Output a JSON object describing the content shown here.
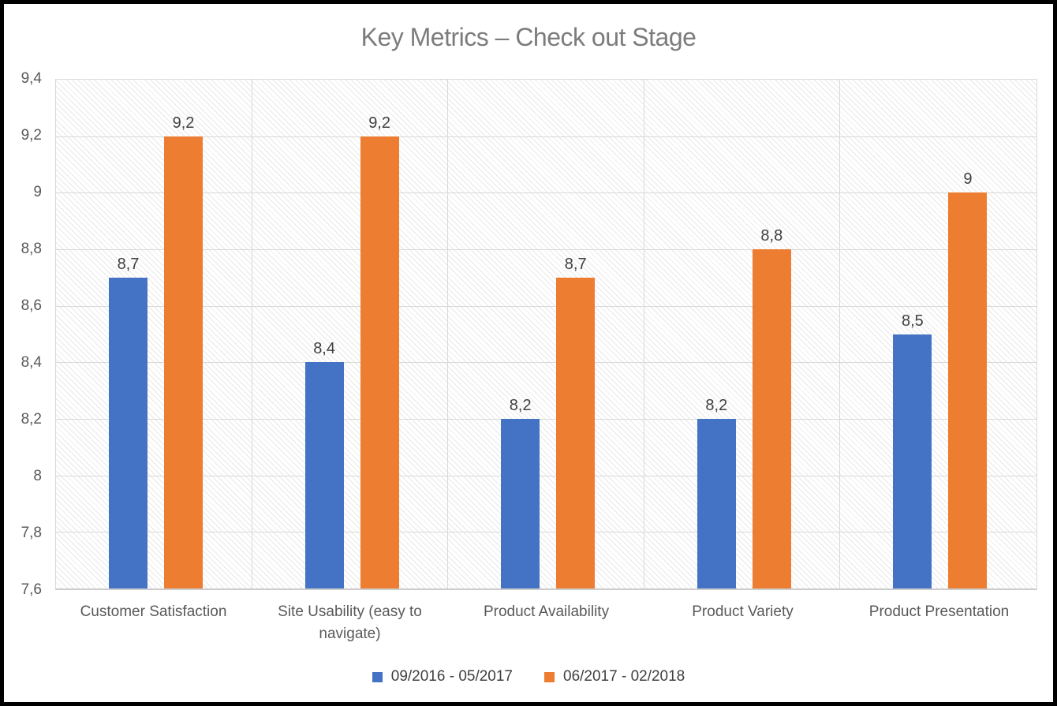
{
  "chart_data": {
    "type": "bar",
    "title": "Key Metrics – Check out Stage",
    "categories": [
      "Customer Satisfaction",
      "Site Usability (easy to navigate)",
      "Product Availability",
      "Product Variety",
      "Product Presentation"
    ],
    "series": [
      {
        "name": "09/2016 - 05/2017",
        "color": "#4472C4",
        "values": [
          8.7,
          8.4,
          8.2,
          8.2,
          8.5
        ],
        "value_labels": [
          "8,7",
          "8,4",
          "8,2",
          "8,2",
          "8,5"
        ]
      },
      {
        "name": "06/2017 - 02/2018",
        "color": "#ED7D31",
        "values": [
          9.2,
          9.2,
          8.7,
          8.8,
          9
        ],
        "value_labels": [
          "9,2",
          "9,2",
          "8,7",
          "8,8",
          "9"
        ]
      }
    ],
    "xlabel": "",
    "ylabel": "",
    "ylim": [
      7.6,
      9.4
    ],
    "y_tick_step": 0.2,
    "y_ticks": [
      {
        "value": 9.4,
        "label": "9,4"
      },
      {
        "value": 9.2,
        "label": "9,2"
      },
      {
        "value": 9.0,
        "label": "9"
      },
      {
        "value": 8.8,
        "label": "8,8"
      },
      {
        "value": 8.6,
        "label": "8,6"
      },
      {
        "value": 8.4,
        "label": "8,4"
      },
      {
        "value": 8.2,
        "label": "8,2"
      },
      {
        "value": 8.0,
        "label": "8"
      },
      {
        "value": 7.8,
        "label": "7,8"
      },
      {
        "value": 7.6,
        "label": "7,6"
      }
    ],
    "decimal_separator": ",",
    "grid": true,
    "plot_background": "diagonal-hatch",
    "legend_position": "bottom"
  },
  "style": {
    "title_color": "#7C7C7C",
    "axis_label_color": "#595959",
    "data_label_color": "#404040",
    "gridline_color": "#D9D9D9",
    "frame_border_color": "#000000",
    "plot_hatch_color": "#E3E3E3"
  }
}
